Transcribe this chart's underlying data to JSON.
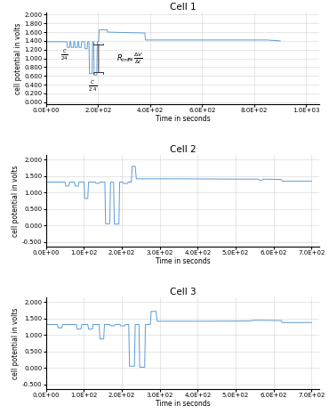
{
  "cell1_title": "Cell 1",
  "cell2_title": "Cell 2",
  "cell3_title": "Cell 3",
  "ylabel": "cell potential in volts",
  "xlabel": "Time in seconds",
  "line_color": "#5B9BD5",
  "background": "#ffffff",
  "grid_color": "#d3d3d3",
  "cell1_ylim": [
    -0.05,
    2.05
  ],
  "cell2_ylim": [
    -0.65,
    2.15
  ],
  "cell3_ylim": [
    -0.65,
    2.15
  ],
  "cell1_yticks": [
    0.0,
    0.2,
    0.4,
    0.6,
    0.8,
    1.0,
    1.2,
    1.4,
    1.6,
    1.8,
    2.0
  ],
  "cell2_yticks": [
    -0.5,
    0.0,
    0.5,
    1.0,
    1.5,
    2.0
  ],
  "cell3_yticks": [
    -0.5,
    0.0,
    0.5,
    1.0,
    1.5,
    2.0
  ],
  "cell1_xlim": [
    0,
    1050
  ],
  "cell2_xlim": [
    0,
    720
  ],
  "cell3_xlim": [
    0,
    720
  ],
  "cell1_xticks": [
    0,
    200,
    400,
    600,
    800,
    1000
  ],
  "cell2_xticks": [
    0,
    100,
    200,
    300,
    400,
    500,
    600,
    700
  ],
  "cell3_xticks": [
    0,
    100,
    200,
    300,
    400,
    500,
    600,
    700
  ],
  "tick_fontsize": 5,
  "label_fontsize": 5.5,
  "title_fontsize": 7.5,
  "lw": 0.7
}
